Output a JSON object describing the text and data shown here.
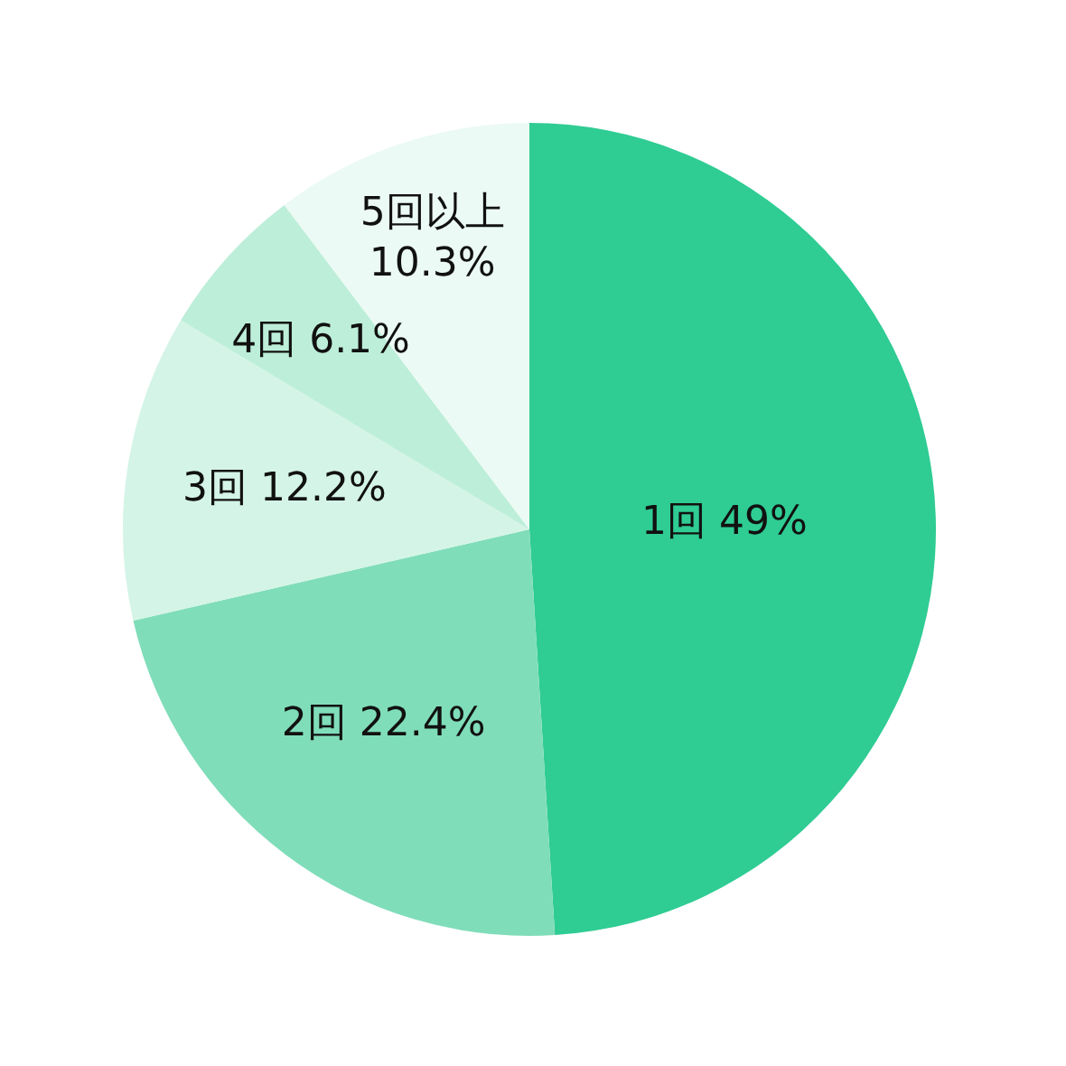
{
  "chart_data": {
    "type": "pie",
    "categories": [
      "1回",
      "2回",
      "3回",
      "4回",
      "5回以上"
    ],
    "values": [
      49,
      22.4,
      12.2,
      6.1,
      10.3
    ],
    "value_labels": [
      "49%",
      "22.4%",
      "12.2%",
      "6.1%",
      "10.3%"
    ],
    "colors": [
      "#2fcc94",
      "#80ddba",
      "#d4f4e7",
      "#bdeed9",
      "#ebfaf4"
    ],
    "legend": false
  }
}
